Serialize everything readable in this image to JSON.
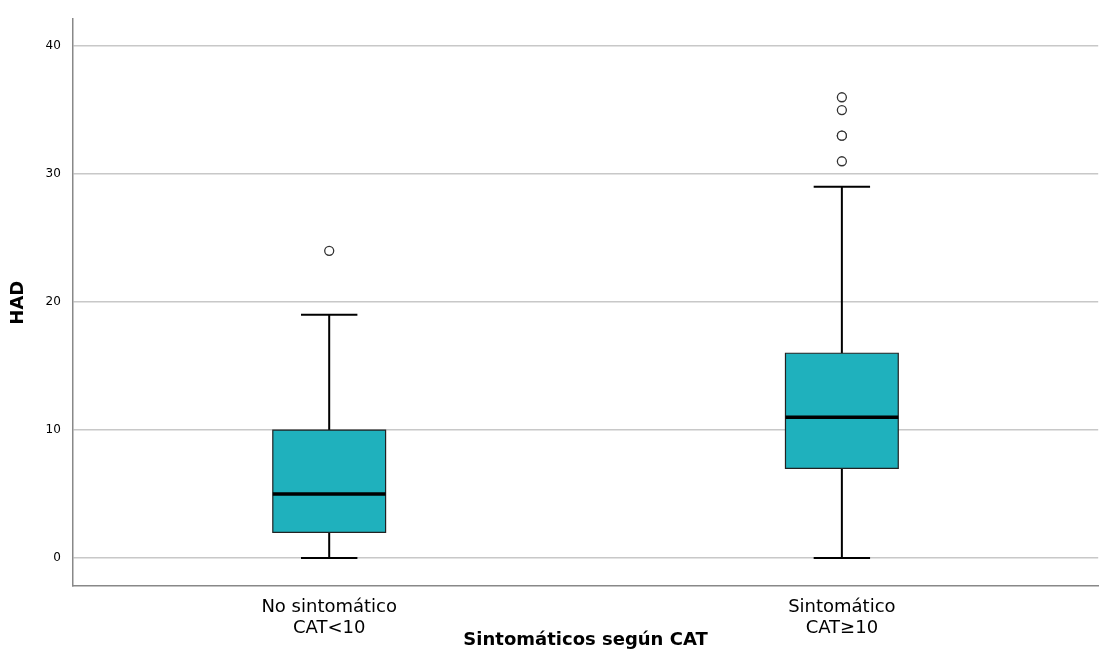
{
  "chart_data": {
    "type": "box",
    "xlabel": "Sintomáticos según CAT",
    "ylabel": "HAD",
    "categories": [
      "No sintomático\nCAT<10",
      "Sintomático\nCAT≥10"
    ],
    "color": "#1fb1bd",
    "boxes": [
      {
        "low": 0,
        "q1": 2,
        "median": 5,
        "q3": 10,
        "high": 19,
        "outliers": [
          24
        ]
      },
      {
        "low": 0,
        "q1": 7,
        "median": 11,
        "q3": 16,
        "high": 29,
        "outliers": [
          31,
          33,
          33,
          35,
          36
        ]
      }
    ],
    "ylim": [
      -2.2,
      42.1
    ],
    "yticks": [
      0,
      10,
      20,
      30,
      40
    ],
    "grid": "y",
    "legend": false
  }
}
